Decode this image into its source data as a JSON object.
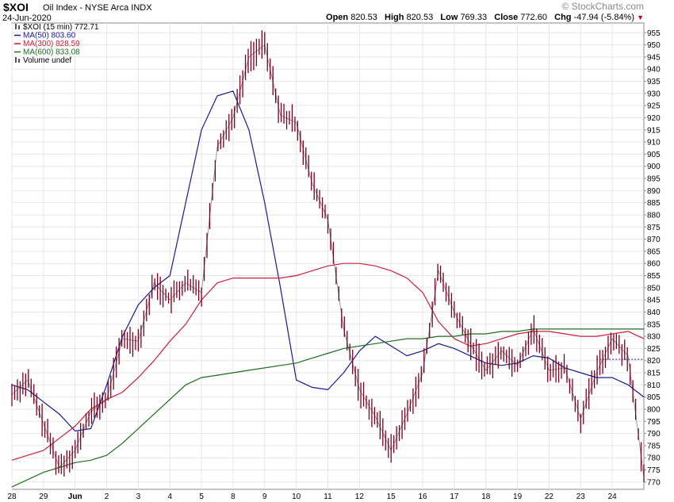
{
  "header": {
    "symbol": "$XOI",
    "description": "Oil Index - NYSE Arca INDX",
    "date": "24-Jun-2020",
    "watermark": "© StockCharts.com",
    "open_label": "Open",
    "open": "820.53",
    "high_label": "High",
    "high": "820.53",
    "low_label": "Low",
    "low": "769.33",
    "close_label": "Close",
    "close": "772.60",
    "chg_label": "Chg",
    "chg": "-47.94 (-5.84%)"
  },
  "legend": [
    {
      "text": "$XOI (15 min) 772.71",
      "color": "#000000",
      "swatch": "bars"
    },
    {
      "text": "MA(50) 803.60",
      "color": "#1a1a8c",
      "swatch": "line"
    },
    {
      "text": "MA(300) 828.59",
      "color": "#cc1f3a",
      "swatch": "line"
    },
    {
      "text": "MA(600) 833.08",
      "color": "#1f6b1f",
      "swatch": "line"
    },
    {
      "text": "Volume undef",
      "color": "#000000",
      "swatch": "bars"
    }
  ],
  "chart_data": {
    "type": "line",
    "title": "$XOI Oil Index - NYSE Arca INDX",
    "ylim": [
      767,
      959
    ],
    "yticks": [
      770,
      775,
      780,
      785,
      790,
      795,
      800,
      805,
      810,
      815,
      820,
      825,
      830,
      835,
      840,
      845,
      850,
      855,
      860,
      865,
      870,
      875,
      880,
      885,
      890,
      895,
      900,
      905,
      910,
      915,
      920,
      925,
      930,
      935,
      940,
      945,
      950,
      955
    ],
    "x_day_labels": [
      "28",
      "29",
      "Jun",
      "2",
      "3",
      "4",
      "5",
      "8",
      "9",
      "10",
      "11",
      "12",
      "15",
      "16",
      "17",
      "18",
      "19",
      "22",
      "23",
      "24"
    ],
    "x": [
      0,
      0.5,
      1,
      1.5,
      2,
      2.5,
      3,
      3.5,
      4,
      4.5,
      5,
      5.5,
      6,
      6.5,
      7,
      7.5,
      8,
      8.5,
      9,
      9.5,
      10,
      10.5,
      11,
      11.5,
      12,
      12.5,
      13,
      13.5,
      14,
      14.5,
      15,
      15.5,
      16,
      16.5,
      17,
      17.5,
      18,
      18.5,
      19,
      19.5,
      20
    ],
    "series": [
      {
        "name": "$XOI (15 min)",
        "color": "#7a0020",
        "values": [
          806,
          812,
          794,
          776,
          783,
          799,
          804,
          829,
          828,
          852,
          845,
          852,
          848,
          908,
          920,
          945,
          950,
          921,
          918,
          893,
          878,
          833,
          808,
          797,
          783,
          798,
          815,
          857,
          840,
          827,
          816,
          824,
          818,
          833,
          816,
          817,
          796,
          815,
          829,
          822,
          772
        ]
      },
      {
        "name": "MA(50)",
        "color": "#1a1a8c",
        "values": [
          810,
          808,
          803,
          798,
          791,
          792,
          810,
          830,
          843,
          850,
          855,
          885,
          915,
          929,
          931,
          915,
          885,
          850,
          812,
          809,
          808,
          815,
          824,
          830,
          826,
          822,
          824,
          827,
          825,
          822,
          819,
          818,
          819,
          822,
          821,
          817,
          815,
          813,
          813,
          810,
          805
        ]
      },
      {
        "name": "MA(300)",
        "color": "#cc1f3a",
        "values": [
          779,
          781,
          783,
          788,
          793,
          800,
          804,
          807,
          813,
          820,
          828,
          835,
          845,
          852,
          854,
          854,
          854,
          854,
          855,
          857,
          859,
          860,
          860,
          859,
          857,
          854,
          848,
          836,
          829,
          826,
          827,
          829,
          831,
          832,
          832,
          831,
          830,
          830,
          831,
          832,
          829
        ]
      },
      {
        "name": "MA(600)",
        "color": "#1f6b1f",
        "values": [
          768,
          771,
          774,
          776,
          778,
          779,
          781,
          786,
          792,
          798,
          804,
          810,
          813,
          814,
          815,
          816,
          817,
          818,
          819,
          821,
          823,
          825,
          826,
          827,
          828,
          829,
          829,
          830,
          830,
          831,
          831,
          832,
          832,
          833,
          833,
          833,
          833,
          833,
          833,
          833,
          833
        ]
      }
    ],
    "reference_lines": [
      {
        "y": 820.53,
        "style": "dashed",
        "color": "#1a1a8c"
      }
    ],
    "grid": true,
    "legend_position": "top-left"
  }
}
